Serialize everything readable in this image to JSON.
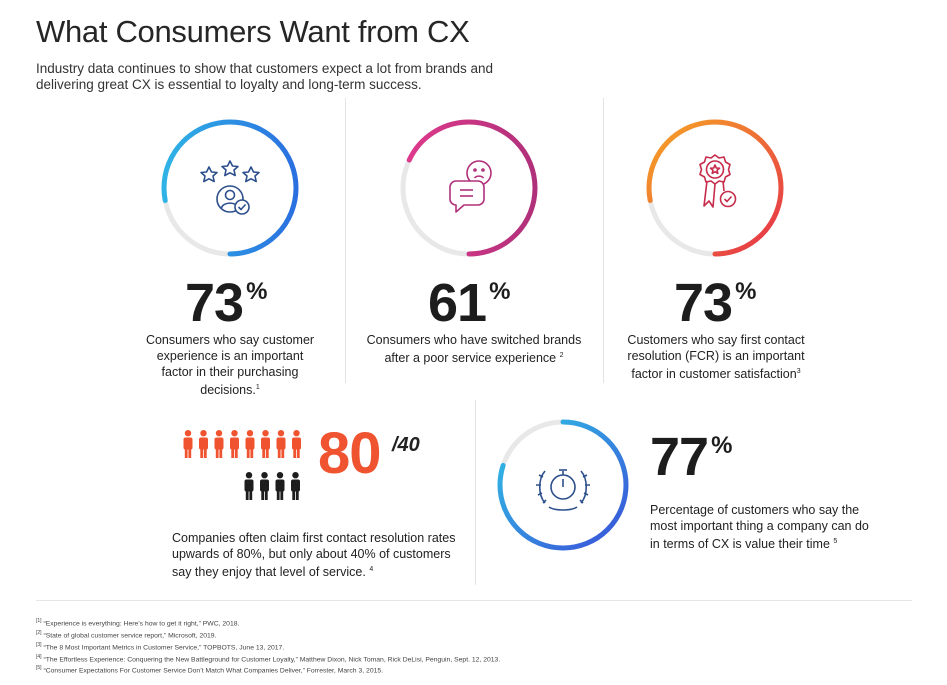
{
  "title": "What Consumers Want from CX",
  "subtitle": "Industry data continues to show that customers expect a lot from brands and delivering great CX is essential to loyalty and long-term success.",
  "stats": [
    {
      "value": "73",
      "unit": "%",
      "text": "Consumers who say customer experience is an important factor in their purchasing decisions.",
      "ref": "1",
      "icon": "rating-customer-icon",
      "ring_fill": 0.78
    },
    {
      "value": "61",
      "unit": "%",
      "text": "Consumers who have switched brands after a poor service experience",
      "ref": "2",
      "icon": "unhappy-chat-icon",
      "ring_fill": 0.68
    },
    {
      "value": "73",
      "unit": "%",
      "text": "Customers who say first contact resolution (FCR) is an important factor in customer satisfaction",
      "ref": "3",
      "icon": "award-ribbon-icon",
      "ring_fill": 0.78
    }
  ],
  "fcr": {
    "value": "80",
    "secondary": "/40",
    "text": "Companies often claim first contact resolution rates upwards of 80%, but only about 40% of customers say they enjoy that level of service.",
    "ref": "4",
    "orange_people": 8,
    "dark_people": 4
  },
  "time": {
    "value": "77",
    "unit": "%",
    "text": "Percentage of customers who say the most important thing a company can do in terms of CX is value their time",
    "ref": "5",
    "icon": "stopwatch-laurel-icon",
    "ring_fill": 0.8
  },
  "footnotes": [
    {
      "n": "[1]",
      "text": "“Experience is everything: Here’s how to get it right,” PWC, 2018."
    },
    {
      "n": "[2]",
      "text": "“State of global customer service report,” Microsoft, 2019."
    },
    {
      "n": "[3]",
      "text": "“The 8 Most Important Metrics in Customer Service,” TOPBOTS, June 13, 2017."
    },
    {
      "n": "[4]",
      "text": "“The Effortless Experience: Conquering the New Battleground for Customer Loyalty,” Matthew Dixon, Nick Toman, Rick DeLisi, Penguin, Sept. 12, 2013."
    },
    {
      "n": "[5]",
      "text": "“Consumer Expectations For Customer Service Don’t Match What Companies Deliver,” Forrester, March 3, 2015."
    }
  ],
  "colors": {
    "blue_start": "#2fb3e6",
    "blue_end": "#2a6fe0",
    "pink_start": "#e03a8c",
    "pink_end": "#b0307a",
    "orange_start": "#f6a623",
    "orange_end": "#e5304b",
    "track": "#e8e8e8",
    "accent_orange": "#f0532f",
    "icon_navy": "#2d4f8c",
    "icon_pink": "#b0307a",
    "icon_red": "#c62c4b"
  }
}
